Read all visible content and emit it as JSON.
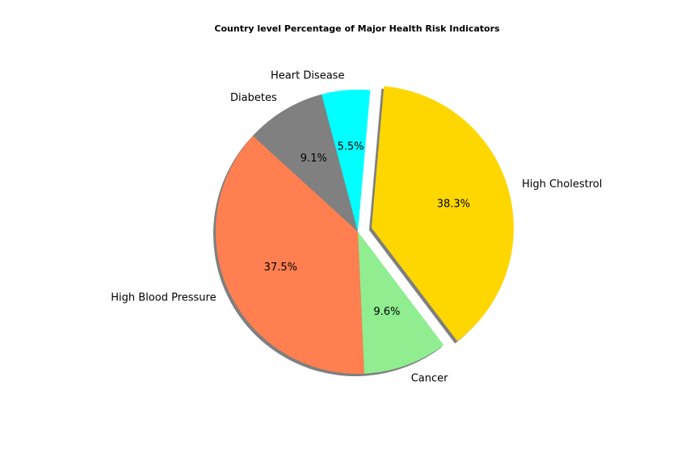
{
  "chart_data": {
    "type": "pie",
    "title": "Country level Percentage of Major Health Risk Indicators",
    "slices": [
      {
        "label": "High Cholestrol",
        "value": 38.3,
        "pct_label": "38.3%",
        "color": "#FFD700",
        "explode": true
      },
      {
        "label": "Cancer",
        "value": 9.6,
        "pct_label": "9.6%",
        "color": "#90EE90",
        "explode": false
      },
      {
        "label": "High Blood Pressure",
        "value": 37.5,
        "pct_label": "37.5%",
        "color": "#FF7F50",
        "explode": false
      },
      {
        "label": "Diabetes",
        "value": 9.1,
        "pct_label": "9.1%",
        "color": "#808080",
        "explode": false
      },
      {
        "label": "Heart Disease",
        "value": 5.5,
        "pct_label": "5.5%",
        "color": "#00FFFF",
        "explode": false
      }
    ],
    "start_angle_deg": 85,
    "direction": "clockwise",
    "shadow": true
  }
}
